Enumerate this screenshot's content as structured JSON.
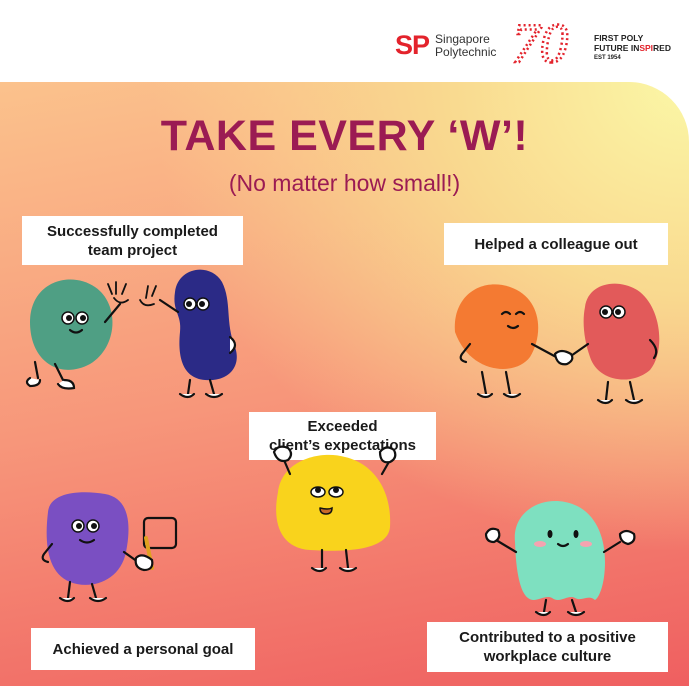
{
  "header": {
    "sp_mark": "SP",
    "sp_name": "Singapore\nPolytechnic",
    "anniversary_number": "70",
    "tagline_line1": "FIRST POLY",
    "tagline_line2_a": "FUTURE IN",
    "tagline_line2_b": "SPI",
    "tagline_line2_c": "RED",
    "tagline_line3": "EST 1954",
    "brand_red": "#e3232c"
  },
  "poster": {
    "title": "TAKE EVERY ‘W’!",
    "subtitle": "(No matter how small!)",
    "title_color": "#9b1b53",
    "labels": {
      "team_project": "Successfully completed\nteam project",
      "helped_colleague": "Helped a colleague out",
      "client_expectations": "Exceeded\nclient’s expectations",
      "personal_goal": "Achieved a personal goal",
      "workplace_culture": "Contributed to a positive\nworkplace culture"
    },
    "character_colors": {
      "green": "#4f9f84",
      "navy": "#2b2a86",
      "orange": "#f47a32",
      "coral": "#e25a5a",
      "yellow": "#f9d31c",
      "purple": "#7a4fc2",
      "mint": "#7ee0c0"
    }
  }
}
